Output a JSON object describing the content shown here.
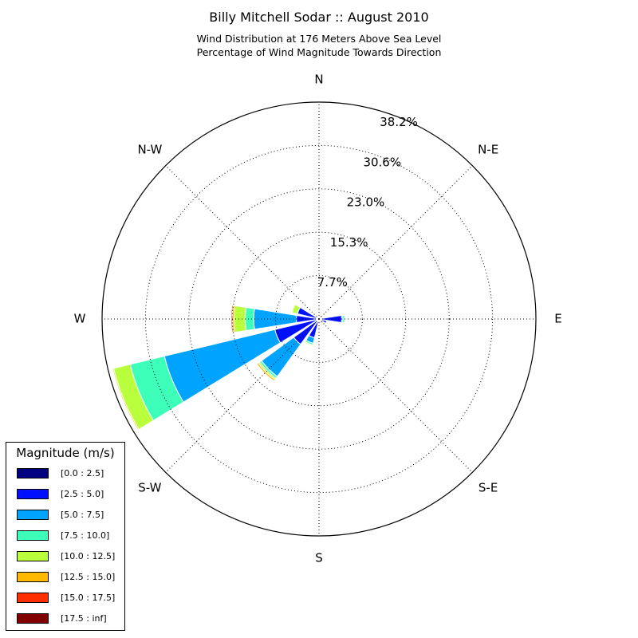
{
  "chart_data": {
    "type": "windrose",
    "title": "Billy Mitchell Sodar :: August 2010",
    "subtitle": [
      "Wind Distribution at 176 Meters Above Sea Level",
      "Percentage of Wind Magnitude Towards Direction"
    ],
    "direction_labels": [
      "N",
      "N-E",
      "E",
      "S-E",
      "S",
      "S-W",
      "W",
      "N-W"
    ],
    "radial_ticks": [
      "7.7%",
      "15.3%",
      "23.0%",
      "30.6%",
      "38.2%"
    ],
    "radial_max": 38.2,
    "radial_unit": "percent",
    "grid": true,
    "legend_title": "Magnitude (m/s)",
    "legend_position": "lower-left",
    "magnitude_bins": [
      {
        "label": "[0.0 : 2.5]",
        "color": "#000080"
      },
      {
        "label": "[2.5 : 5.0]",
        "color": "#0010ff"
      },
      {
        "label": "[5.0 : 7.5]",
        "color": "#00a4ff"
      },
      {
        "label": "[7.5 : 10.0]",
        "color": "#3dffba"
      },
      {
        "label": "[10.0 : 12.5]",
        "color": "#b9ff3d"
      },
      {
        "label": "[12.5 : 15.0]",
        "color": "#ffb900"
      },
      {
        "label": "[15.0 : 17.5]",
        "color": "#ff3000"
      },
      {
        "label": "[17.5 : inf]",
        "color": "#800000"
      }
    ],
    "sectors": [
      {
        "direction_deg": 0,
        "values": [
          0.3,
          0.4,
          0,
          0,
          0,
          0,
          0,
          0
        ]
      },
      {
        "direction_deg": 22.5,
        "values": [
          0.3,
          0.4,
          0,
          0,
          0,
          0,
          0,
          0
        ]
      },
      {
        "direction_deg": 45,
        "values": [
          0.3,
          0.5,
          0,
          0,
          0,
          0,
          0,
          0
        ]
      },
      {
        "direction_deg": 67.5,
        "values": [
          0.3,
          0.3,
          0,
          0,
          0,
          0,
          0,
          0
        ]
      },
      {
        "direction_deg": 90,
        "values": [
          0.5,
          3.5,
          0.2,
          0.3,
          0,
          0,
          0,
          0
        ]
      },
      {
        "direction_deg": 112.5,
        "values": [
          0.4,
          1.0,
          0,
          0,
          0,
          0,
          0,
          0
        ]
      },
      {
        "direction_deg": 135,
        "values": [
          0.4,
          0.5,
          0,
          0,
          0,
          0,
          0,
          0
        ]
      },
      {
        "direction_deg": 157.5,
        "values": [
          0.4,
          0.3,
          0,
          0,
          0,
          0,
          0,
          0
        ]
      },
      {
        "direction_deg": 180,
        "values": [
          0.4,
          0.4,
          0,
          0,
          0,
          0,
          0,
          0
        ]
      },
      {
        "direction_deg": 202.5,
        "values": [
          0.4,
          3.0,
          1.0,
          0.3,
          0.2,
          0,
          0,
          0
        ]
      },
      {
        "direction_deg": 225,
        "values": [
          0.5,
          5.0,
          7.0,
          0.4,
          0.3,
          0.3,
          0,
          0
        ]
      },
      {
        "direction_deg": 247.5,
        "values": [
          0.5,
          7.5,
          20.0,
          6.2,
          3.0,
          0.2,
          0,
          0
        ]
      },
      {
        "direction_deg": 270,
        "values": [
          0.5,
          3.5,
          7.5,
          1.5,
          2.0,
          0.3,
          0.2,
          0
        ]
      },
      {
        "direction_deg": 292.5,
        "values": [
          0.4,
          3.5,
          0,
          0,
          1.0,
          0,
          0,
          0
        ]
      },
      {
        "direction_deg": 315,
        "values": [
          0.3,
          0.3,
          0,
          0,
          0,
          0,
          0,
          0
        ]
      },
      {
        "direction_deg": 337.5,
        "values": [
          0.3,
          0.3,
          0,
          0,
          0,
          0,
          0,
          0
        ]
      }
    ]
  }
}
